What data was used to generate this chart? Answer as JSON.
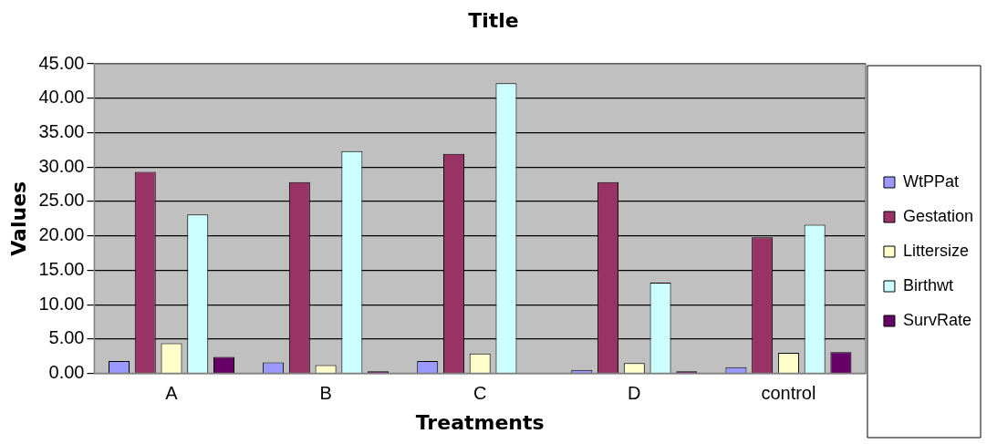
{
  "chart_data": {
    "type": "bar",
    "title": "Title",
    "xlabel": "Treatments",
    "ylabel": "Values",
    "categories": [
      "A",
      "B",
      "C",
      "D",
      "control"
    ],
    "series": [
      {
        "name": "WtPPat",
        "color": "#9999ff",
        "values": [
          1.8,
          1.6,
          1.8,
          0.5,
          0.9
        ]
      },
      {
        "name": "Gestation",
        "color": "#993366",
        "values": [
          29.3,
          27.8,
          31.9,
          27.8,
          19.8
        ]
      },
      {
        "name": "Littersize",
        "color": "#ffffcc",
        "values": [
          4.4,
          1.2,
          2.9,
          1.5,
          3.0
        ]
      },
      {
        "name": "Birthwt",
        "color": "#ccffff",
        "values": [
          23.1,
          32.3,
          42.2,
          13.2,
          21.6
        ]
      },
      {
        "name": "SurvRate",
        "color": "#660066",
        "values": [
          2.4,
          0.3,
          0,
          0.3,
          3.1
        ]
      }
    ],
    "ylim": [
      0,
      45
    ],
    "yticks": [
      {
        "value": 0,
        "label": "0.00"
      },
      {
        "value": 5,
        "label": "5.00"
      },
      {
        "value": 10,
        "label": "10.00"
      },
      {
        "value": 15,
        "label": "15.00"
      },
      {
        "value": 20,
        "label": "20.00"
      },
      {
        "value": 25,
        "label": "25.00"
      },
      {
        "value": 30,
        "label": "30.00"
      },
      {
        "value": 35,
        "label": "35.00"
      },
      {
        "value": 40,
        "label": "40.00"
      },
      {
        "value": 45,
        "label": "45.00"
      }
    ],
    "grid": "y",
    "legend": "right"
  }
}
